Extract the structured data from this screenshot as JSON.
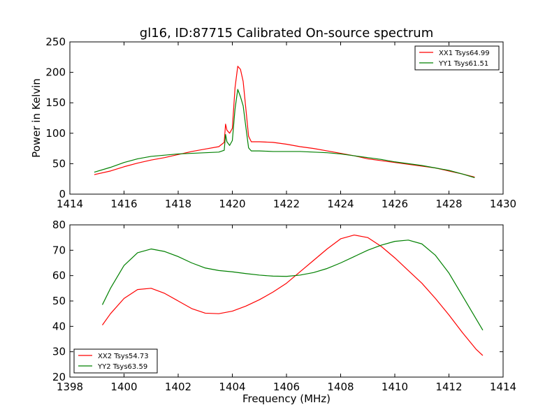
{
  "figure": {
    "title": "gl16, ID:87715 Calibrated On-source spectrum"
  },
  "chart_data": [
    {
      "type": "line",
      "title": "gl16, ID:87715 Calibrated On-source spectrum",
      "xlabel": "",
      "ylabel": "Power in Kelvin",
      "xlim": [
        1414,
        1430
      ],
      "ylim": [
        0,
        250
      ],
      "xticks": [
        "1414",
        "1416",
        "1418",
        "1420",
        "1422",
        "1424",
        "1426",
        "1428",
        "1430"
      ],
      "yticks": [
        "0",
        "50",
        "100",
        "150",
        "200",
        "250"
      ],
      "grid": false,
      "legend": "top-right",
      "series": [
        {
          "name": "XX1 Tsys64.99",
          "color": "#ff0000",
          "x": [
            1414.9,
            1415.5,
            1416.0,
            1416.5,
            1417.0,
            1417.5,
            1418.0,
            1418.5,
            1419.0,
            1419.5,
            1419.7,
            1419.75,
            1419.8,
            1419.9,
            1420.0,
            1420.1,
            1420.2,
            1420.3,
            1420.4,
            1420.5,
            1420.6,
            1420.7,
            1421.0,
            1421.5,
            1422.0,
            1422.5,
            1423.0,
            1423.5,
            1424.0,
            1424.5,
            1425.0,
            1425.5,
            1426.0,
            1426.5,
            1427.0,
            1427.5,
            1428.0,
            1428.5,
            1428.95
          ],
          "y": [
            32,
            38,
            45,
            51,
            56,
            60,
            65,
            70,
            74,
            78,
            85,
            115,
            105,
            100,
            108,
            175,
            210,
            205,
            185,
            140,
            95,
            86,
            86,
            85,
            82,
            78,
            75,
            71,
            67,
            63,
            58,
            55,
            52,
            49,
            46,
            43,
            38,
            33,
            28
          ]
        },
        {
          "name": "YY1 Tsys61.51",
          "color": "#008000",
          "x": [
            1414.9,
            1415.5,
            1416.0,
            1416.5,
            1417.0,
            1417.5,
            1418.0,
            1418.5,
            1419.0,
            1419.5,
            1419.7,
            1419.75,
            1419.8,
            1419.9,
            1420.0,
            1420.1,
            1420.2,
            1420.3,
            1420.4,
            1420.5,
            1420.6,
            1420.7,
            1421.0,
            1421.5,
            1422.0,
            1422.5,
            1423.0,
            1423.5,
            1424.0,
            1424.5,
            1425.0,
            1425.5,
            1426.0,
            1426.5,
            1427.0,
            1427.5,
            1428.0,
            1428.5,
            1428.95
          ],
          "y": [
            36,
            44,
            52,
            58,
            62,
            64,
            66,
            67,
            68,
            69,
            72,
            98,
            86,
            80,
            88,
            140,
            172,
            160,
            145,
            110,
            76,
            71,
            71,
            70,
            70,
            70,
            69,
            68,
            66,
            63,
            60,
            57,
            53,
            50,
            47,
            43,
            39,
            33,
            27
          ]
        }
      ]
    },
    {
      "type": "line",
      "title": "",
      "xlabel": "Frequency (MHz)",
      "ylabel": "",
      "xlim": [
        1398,
        1414
      ],
      "ylim": [
        20,
        80
      ],
      "xticks": [
        "1398",
        "1400",
        "1402",
        "1404",
        "1406",
        "1408",
        "1410",
        "1412",
        "1414"
      ],
      "yticks": [
        "20",
        "30",
        "40",
        "50",
        "60",
        "70",
        "80"
      ],
      "grid": false,
      "legend": "bottom-left",
      "series": [
        {
          "name": "XX2 Tsys54.73",
          "color": "#ff0000",
          "x": [
            1399.2,
            1399.5,
            1400.0,
            1400.5,
            1401.0,
            1401.5,
            1402.0,
            1402.5,
            1403.0,
            1403.5,
            1404.0,
            1404.5,
            1405.0,
            1405.5,
            1406.0,
            1406.5,
            1407.0,
            1407.5,
            1408.0,
            1408.5,
            1409.0,
            1409.5,
            1410.0,
            1410.5,
            1411.0,
            1411.5,
            1412.0,
            1412.5,
            1413.0,
            1413.25
          ],
          "y": [
            40.5,
            45,
            51,
            54.5,
            55,
            53,
            50,
            47,
            45.2,
            45,
            46,
            48,
            50.5,
            53.5,
            57,
            61.5,
            66,
            70.5,
            74.5,
            76,
            75,
            71.5,
            67,
            62,
            57,
            51,
            44.5,
            37.5,
            31,
            28.5
          ]
        },
        {
          "name": "YY2 Tsys63.59",
          "color": "#008000",
          "x": [
            1399.2,
            1399.5,
            1400.0,
            1400.5,
            1401.0,
            1401.5,
            1402.0,
            1402.5,
            1403.0,
            1403.5,
            1404.0,
            1404.5,
            1405.0,
            1405.5,
            1406.0,
            1406.5,
            1407.0,
            1407.5,
            1408.0,
            1408.5,
            1409.0,
            1409.5,
            1410.0,
            1410.5,
            1411.0,
            1411.5,
            1412.0,
            1412.5,
            1413.0,
            1413.25
          ],
          "y": [
            48.5,
            55,
            64,
            69,
            70.5,
            69.5,
            67.5,
            65,
            63,
            62,
            61.5,
            60.8,
            60.2,
            59.8,
            59.7,
            60.2,
            61.2,
            62.8,
            65,
            67.5,
            70,
            72,
            73.5,
            74,
            72.5,
            68,
            61,
            52,
            43,
            38.5
          ]
        }
      ]
    }
  ]
}
